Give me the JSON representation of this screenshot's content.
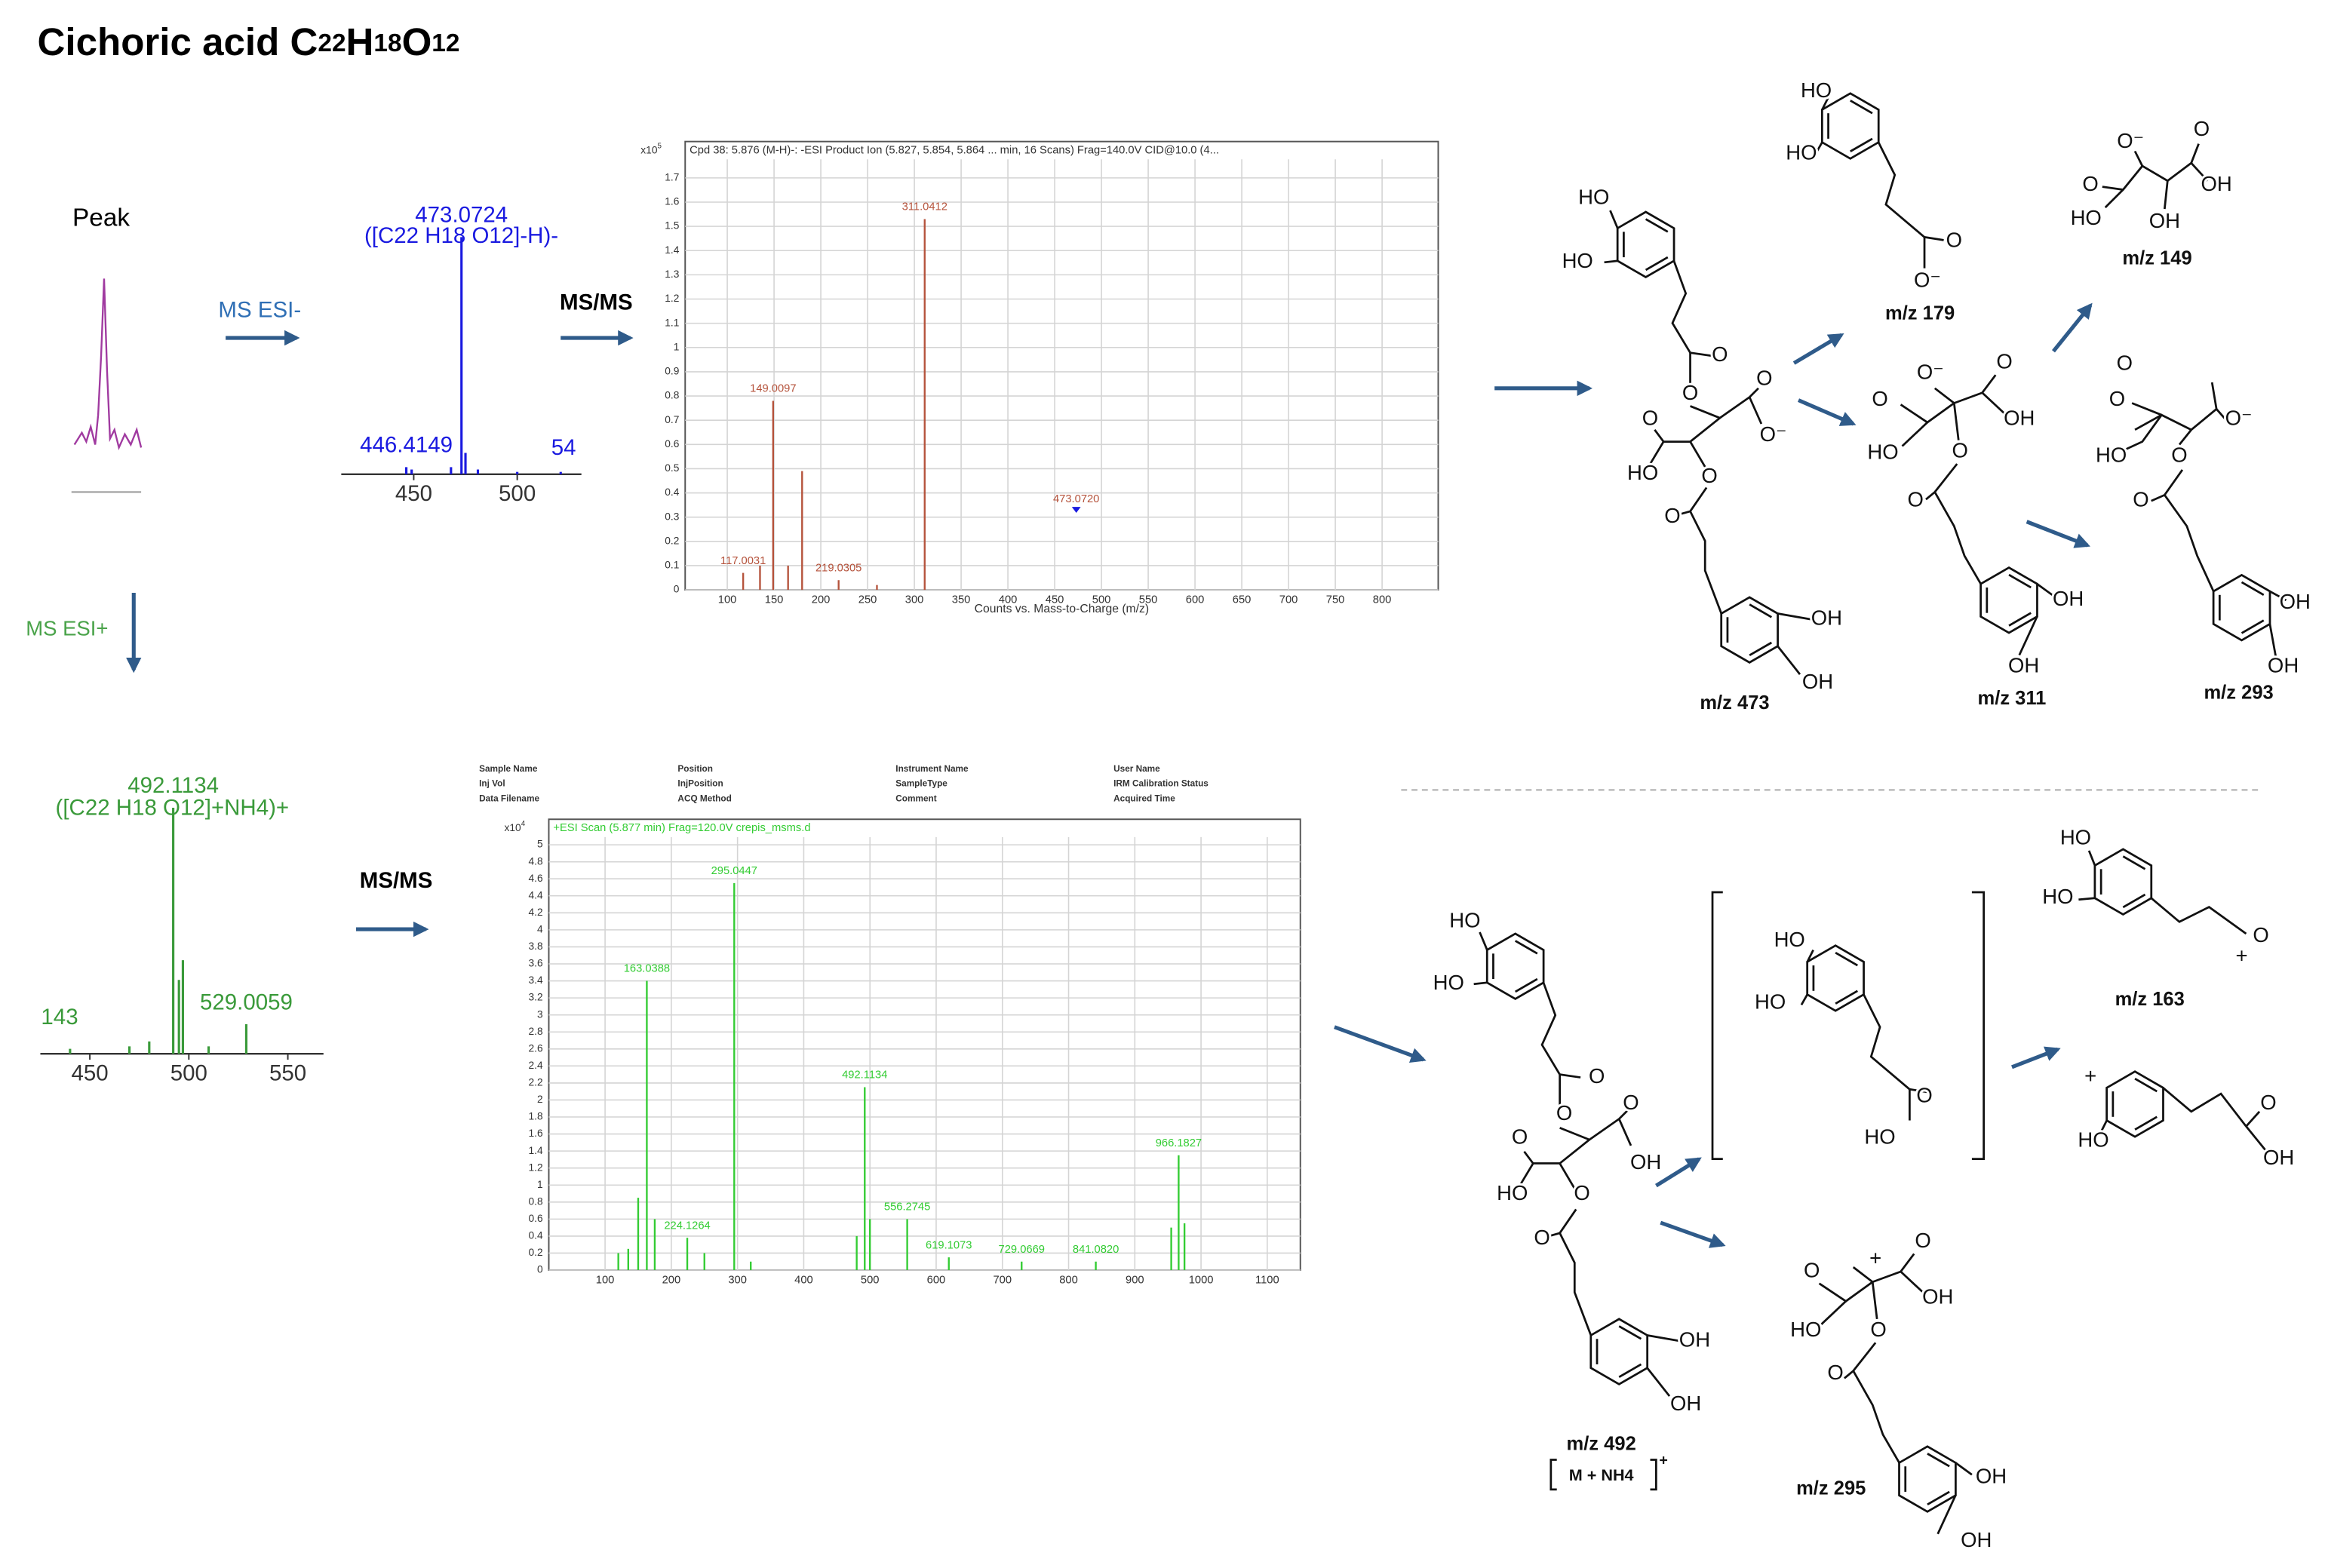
{
  "title": {
    "name": "Cichoric acid",
    "formula": [
      {
        "el": "C",
        "n": "22"
      },
      {
        "el": "H",
        "n": "18"
      },
      {
        "el": "O",
        "n": "12"
      }
    ]
  },
  "flow": {
    "peak": "Peak",
    "ms_neg": "MS ESI-",
    "msms_neg": "MS/MS",
    "ms_pos": "MS ESI+",
    "msms_pos": "MS/MS"
  },
  "ms_metadata": [
    [
      "Sample Name",
      "Inj Vol",
      "Data Filename"
    ],
    [
      "Position",
      "InjPosition",
      "ACQ Method"
    ],
    [
      "Instrument Name",
      "SampleType",
      "Comment"
    ],
    [
      "User Name",
      "IRM Calibration Status",
      "Acquired Time"
    ]
  ],
  "chart_data": [
    {
      "type": "bar",
      "color": "#1a1ae0",
      "x": [
        446.4149,
        449,
        468,
        473.0724,
        475,
        481,
        500,
        521
      ],
      "values": [
        3,
        2,
        3,
        100,
        9,
        2,
        1,
        1
      ],
      "peak_labels": [
        "446.4149",
        null,
        null,
        "473.0724",
        null,
        null,
        null,
        null
      ],
      "xlim": [
        415,
        531
      ],
      "ylim": [
        0,
        100
      ],
      "xticks": [
        450,
        500
      ],
      "annotations": [
        "([C22 H18 O12]-H)-",
        "54"
      ]
    },
    {
      "type": "bar",
      "color": "#3a9a3a",
      "x": [
        440,
        470,
        480,
        492.1134,
        495,
        497,
        510,
        529.0059
      ],
      "values": [
        2,
        3,
        5,
        100,
        30,
        38,
        3,
        12
      ],
      "peak_labels": [
        null,
        null,
        null,
        "492.1134",
        null,
        null,
        null,
        "529.0059"
      ],
      "xlim": [
        425,
        568
      ],
      "ylim": [
        0,
        100
      ],
      "xticks": [
        450,
        500,
        550
      ],
      "annotations": [
        "([C22 H18 O12]+NH4)+",
        "143"
      ]
    },
    {
      "type": "bar",
      "color": "#b5533c",
      "grid": true,
      "header": "Cpd 38: 5.876 (M-H)-: -ESI Product Ion (5.827, 5.854, 5.864 ... min, 16 Scans) Frag=140.0V CID@10.0 (4...",
      "y_multiplier": {
        "base": "x10",
        "exp": "5"
      },
      "xlabel": "Counts vs. Mass-to-Charge (m/z)",
      "x": [
        117.0031,
        135,
        149.0097,
        165,
        180,
        219.0305,
        260,
        311.0412
      ],
      "values": [
        0.07,
        0.1,
        0.78,
        0.1,
        0.49,
        0.04,
        0.02,
        1.53
      ],
      "peak_labels": [
        "117.0031",
        null,
        "149.0097",
        null,
        null,
        "219.0305",
        null,
        "311.0412"
      ],
      "precursor": {
        "x": 473.072,
        "value": 0.33,
        "label": "473.0720",
        "color": "#1a1ae0"
      },
      "xlim": [
        55,
        860
      ],
      "ylim": [
        0,
        1.85
      ],
      "xticks": [
        100,
        150,
        200,
        250,
        300,
        350,
        400,
        450,
        500,
        550,
        600,
        650,
        700,
        750,
        800
      ],
      "yticks": [
        0,
        0.1,
        0.2,
        0.3,
        0.4,
        0.5,
        0.6,
        0.7,
        0.8,
        0.9,
        1,
        1.1,
        1.2,
        1.3,
        1.4,
        1.5,
        1.6,
        1.7
      ]
    },
    {
      "type": "bar",
      "color": "#33cc33",
      "grid": true,
      "header": "+ESI Scan (5.877 min) Frag=120.0V crepis_msms.d",
      "y_multiplier": {
        "base": "x10",
        "exp": "4"
      },
      "x": [
        120,
        135,
        150,
        163.0388,
        175,
        224.1264,
        250,
        295.0447,
        320,
        480,
        492.1134,
        500,
        556.2745,
        619.1073,
        729.0669,
        841.082,
        955,
        966.1827,
        975
      ],
      "values": [
        0.2,
        0.25,
        0.85,
        3.4,
        0.6,
        0.38,
        0.2,
        4.55,
        0.1,
        0.4,
        2.15,
        0.6,
        0.6,
        0.15,
        0.1,
        0.1,
        0.5,
        1.35,
        0.55
      ],
      "peak_labels": [
        null,
        null,
        null,
        "163.0388",
        null,
        "224.1264",
        null,
        "295.0447",
        null,
        null,
        "492.1134",
        null,
        "556.2745",
        "619.1073",
        "729.0669",
        "841.0820",
        null,
        "966.1827",
        null
      ],
      "xlim": [
        15,
        1150
      ],
      "ylim": [
        0,
        5.3
      ],
      "xticks": [
        100,
        200,
        300,
        400,
        500,
        600,
        700,
        800,
        900,
        1000,
        1100
      ],
      "yticks": [
        0,
        0.2,
        0.4,
        0.6,
        0.8,
        1,
        1.2,
        1.4,
        1.6,
        1.8,
        2,
        2.2,
        2.4,
        2.6,
        2.8,
        3,
        3.2,
        3.4,
        3.6,
        3.8,
        4,
        4.2,
        4.4,
        4.6,
        4.8,
        5
      ]
    }
  ],
  "structures": [
    {
      "atoms": [
        "HO",
        "HO",
        "O",
        "O",
        "O",
        "O⁻",
        "O",
        "HO",
        "O",
        "O",
        "OH",
        "OH"
      ],
      "caption": "m/z 473"
    },
    {
      "atoms": [
        "HO",
        "HO",
        "O",
        "O⁻"
      ],
      "caption": "m/z 179"
    },
    {
      "atoms": [
        "O⁻",
        "O",
        "OH",
        "O",
        "HO",
        "OH"
      ],
      "caption": "m/z 149"
    },
    {
      "atoms": [
        "O⁻",
        "O",
        "OH",
        "O",
        "HO",
        "O",
        "O",
        "OH",
        "OH"
      ],
      "caption": "m/z 311"
    },
    {
      "atoms": [
        "O",
        "O⁻",
        "O",
        "HO",
        "O",
        "O",
        "OH",
        "OH"
      ],
      "caption": "m/z 293"
    },
    {
      "atoms": [
        "HO",
        "HO",
        "O",
        "O",
        "O",
        "OH",
        "O",
        "HO",
        "O",
        "O",
        "OH",
        "OH"
      ],
      "caption": "m/z 492",
      "adduct": "M + NH4",
      "adduct_charge": "+"
    },
    {
      "atoms": [
        "HO",
        "HO",
        "O",
        "HO"
      ]
    },
    {
      "atoms": [
        "HO",
        "HO",
        "O",
        "+"
      ],
      "caption": "m/z 163"
    },
    {
      "atoms": [
        "+",
        "HO",
        "O",
        "OH"
      ]
    },
    {
      "atoms": [
        "+",
        "O",
        "OH",
        "O",
        "HO",
        "O",
        "O",
        "OH",
        "OH"
      ],
      "caption": "m/z 295"
    }
  ]
}
